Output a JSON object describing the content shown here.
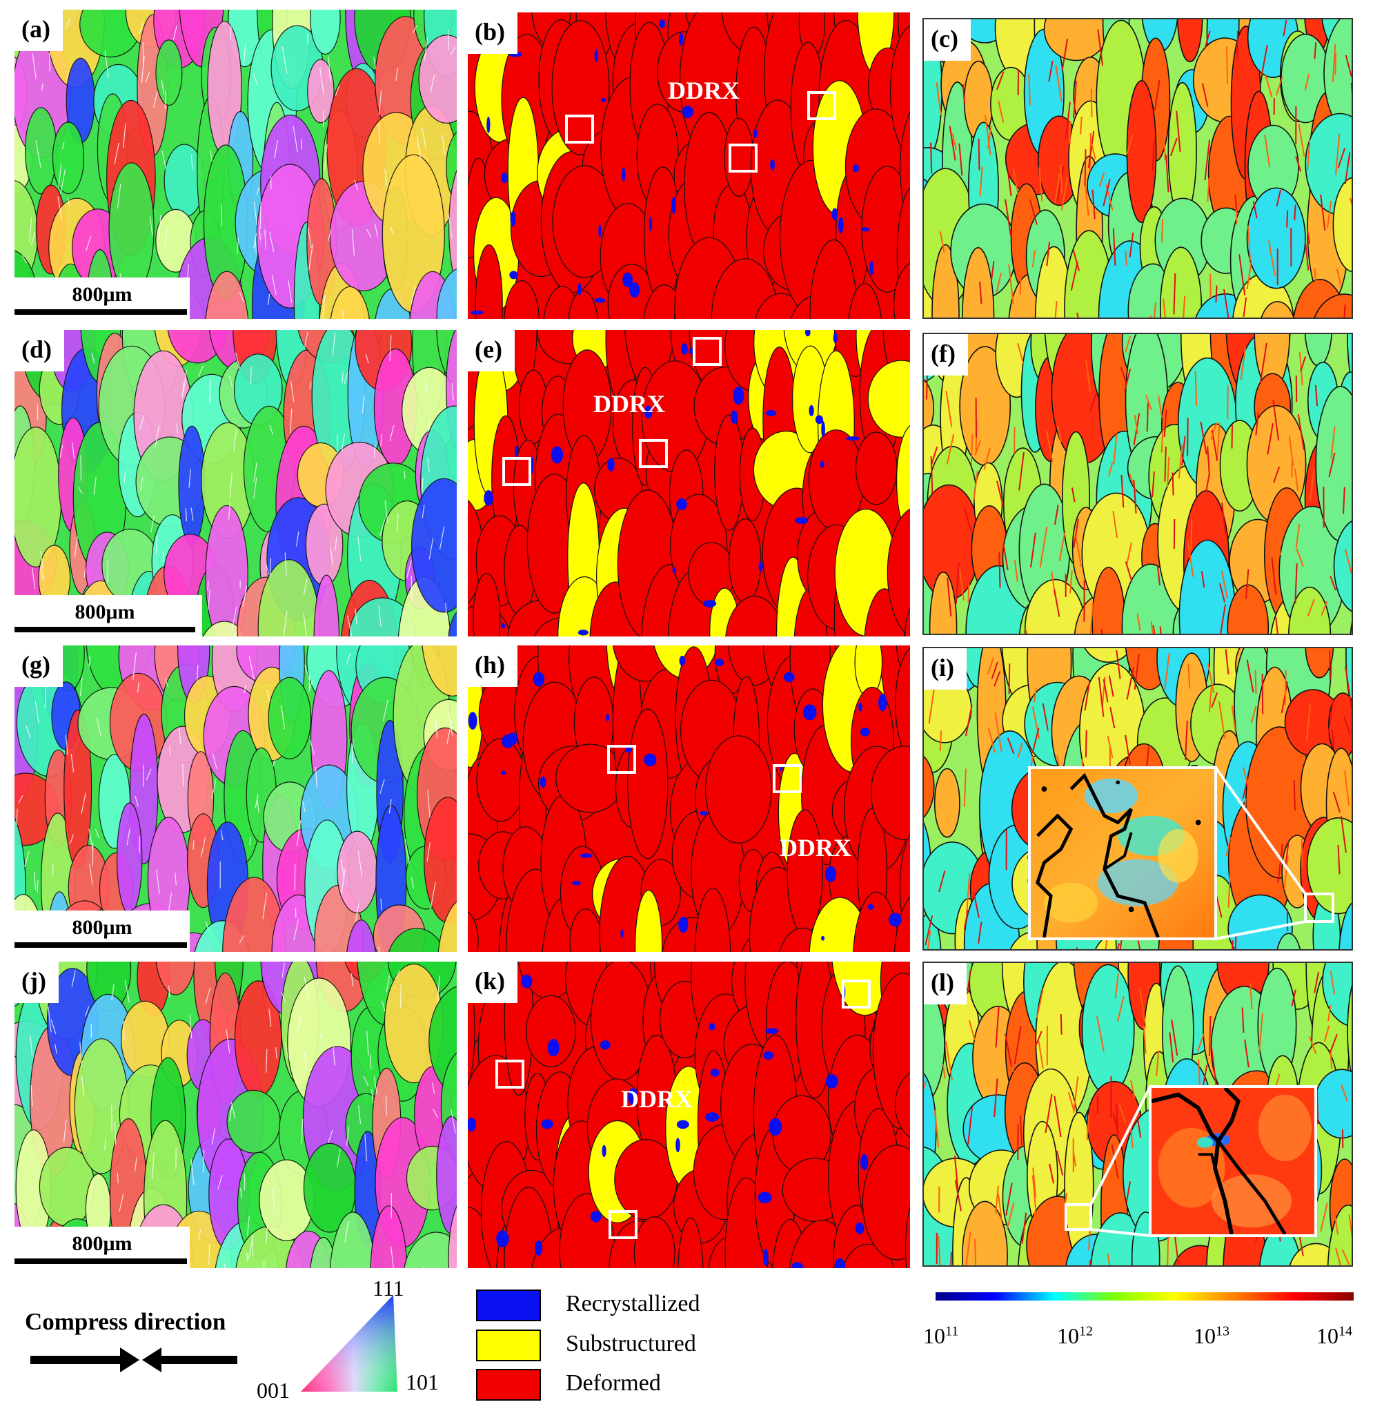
{
  "panels": [
    {
      "id": "a",
      "label": "(a)",
      "kind": "ipf",
      "scale_label": "800μm"
    },
    {
      "id": "b",
      "label": "(b)",
      "kind": "recryst",
      "annotation": "DDRX"
    },
    {
      "id": "c",
      "label": "(c)",
      "kind": "kam"
    },
    {
      "id": "d",
      "label": "(d)",
      "kind": "ipf",
      "scale_label": "800μm"
    },
    {
      "id": "e",
      "label": "(e)",
      "kind": "recryst",
      "annotation": "DDRX"
    },
    {
      "id": "f",
      "label": "(f)",
      "kind": "kam"
    },
    {
      "id": "g",
      "label": "(g)",
      "kind": "ipf",
      "scale_label": "800μm"
    },
    {
      "id": "h",
      "label": "(h)",
      "kind": "recryst",
      "annotation": "DDRX"
    },
    {
      "id": "i",
      "label": "(i)",
      "kind": "kam"
    },
    {
      "id": "j",
      "label": "(j)",
      "kind": "ipf",
      "scale_label": "800μm"
    },
    {
      "id": "k",
      "label": "(k)",
      "kind": "recryst",
      "annotation": "DDRX"
    },
    {
      "id": "l",
      "label": "(l)",
      "kind": "kam"
    }
  ],
  "compress_direction": {
    "label": "Compress direction"
  },
  "ipf_triangle": {
    "vertex_top": "111",
    "vertex_left": "001",
    "vertex_right": "101"
  },
  "recryst_legend": [
    {
      "label": "Recrystallized",
      "color": "#0a10f0"
    },
    {
      "label": "Substructured",
      "color": "#ffff00"
    },
    {
      "label": "Deformed",
      "color": "#f20000"
    }
  ],
  "colorbar": {
    "colors": [
      "#00008b",
      "#0000ff",
      "#00ffff",
      "#7fff00",
      "#ffff00",
      "#ff8000",
      "#ff0000",
      "#8b0000"
    ],
    "ticks": [
      {
        "base": "10",
        "exp": "11"
      },
      {
        "base": "10",
        "exp": "12"
      },
      {
        "base": "10",
        "exp": "13"
      },
      {
        "base": "10",
        "exp": "14"
      }
    ]
  }
}
